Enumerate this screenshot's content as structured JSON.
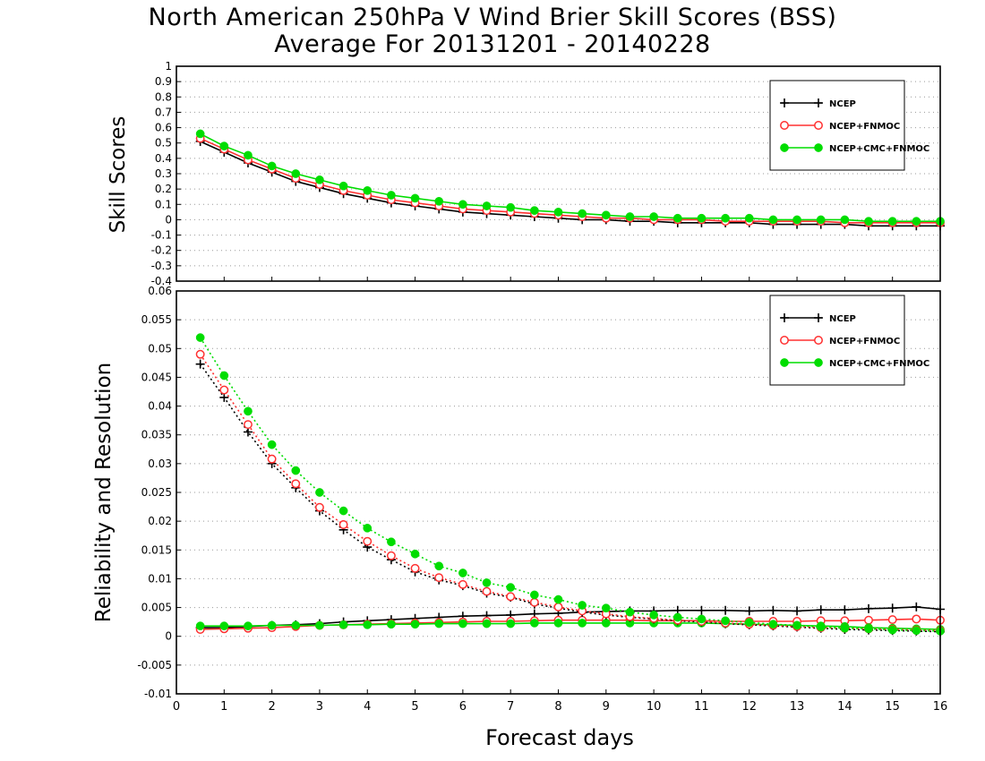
{
  "title_line1": "North American 250hPa V Wind Brier Skill Scores (BSS)",
  "title_line2": "Average For 20131201 - 20140228",
  "xlabel": "Forecast days",
  "colors": {
    "ncep": "#000000",
    "fnmoc": "#ff3030",
    "cmc": "#00dd00",
    "grid": "#999999"
  },
  "chart_data": [
    {
      "type": "line",
      "ylabel": "Skill Scores",
      "xlim": [
        0,
        16
      ],
      "ylim": [
        -0.4,
        1
      ],
      "x_ticks": [
        0,
        1,
        2,
        3,
        4,
        5,
        6,
        7,
        8,
        9,
        10,
        11,
        12,
        13,
        14,
        15,
        16
      ],
      "y_ticks": [
        "-0.4",
        "-0.3",
        "-0.2",
        "-0.1",
        "0",
        "0.1",
        "0.2",
        "0.3",
        "0.4",
        "0.5",
        "0.6",
        "0.7",
        "0.8",
        "0.9",
        "1"
      ],
      "grid": "horizontal dotted",
      "legend": "top-right",
      "x": [
        0.5,
        1,
        1.5,
        2,
        2.5,
        3,
        3.5,
        4,
        4.5,
        5,
        5.5,
        6,
        6.5,
        7,
        7.5,
        8,
        8.5,
        9,
        9.5,
        10,
        10.5,
        11,
        11.5,
        12,
        12.5,
        13,
        13.5,
        14,
        14.5,
        15,
        15.5,
        16
      ],
      "series": [
        {
          "name": "NCEP",
          "color": "#000000",
          "marker": "plus",
          "line": "solid",
          "values": [
            0.51,
            0.44,
            0.37,
            0.31,
            0.25,
            0.21,
            0.17,
            0.14,
            0.11,
            0.09,
            0.07,
            0.05,
            0.04,
            0.03,
            0.02,
            0.01,
            0.0,
            0.0,
            -0.01,
            -0.01,
            -0.02,
            -0.02,
            -0.02,
            -0.02,
            -0.03,
            -0.03,
            -0.03,
            -0.03,
            -0.04,
            -0.04,
            -0.04,
            -0.04
          ]
        },
        {
          "name": "NCEP+FNMOC",
          "color": "#ff3030",
          "marker": "open-circle",
          "line": "solid",
          "values": [
            0.53,
            0.46,
            0.39,
            0.33,
            0.27,
            0.23,
            0.19,
            0.16,
            0.13,
            0.11,
            0.09,
            0.07,
            0.06,
            0.05,
            0.04,
            0.03,
            0.02,
            0.01,
            0.01,
            0.0,
            0.0,
            0.0,
            -0.01,
            -0.01,
            -0.01,
            -0.01,
            -0.01,
            -0.02,
            -0.02,
            -0.02,
            -0.02,
            -0.02
          ]
        },
        {
          "name": "NCEP+CMC+FNMOC",
          "color": "#00dd00",
          "marker": "filled-circle",
          "line": "solid",
          "values": [
            0.56,
            0.48,
            0.42,
            0.35,
            0.3,
            0.26,
            0.22,
            0.19,
            0.16,
            0.14,
            0.12,
            0.1,
            0.09,
            0.08,
            0.06,
            0.05,
            0.04,
            0.03,
            0.02,
            0.02,
            0.01,
            0.01,
            0.01,
            0.01,
            0.0,
            0.0,
            0.0,
            0.0,
            -0.01,
            -0.01,
            -0.01,
            -0.01
          ]
        }
      ]
    },
    {
      "type": "line",
      "ylabel": "Reliability and Resolution",
      "xlim": [
        0,
        16
      ],
      "ylim": [
        -0.01,
        0.06
      ],
      "x_ticks": [
        0,
        1,
        2,
        3,
        4,
        5,
        6,
        7,
        8,
        9,
        10,
        11,
        12,
        13,
        14,
        15,
        16
      ],
      "y_ticks": [
        "-0.01",
        "-0.005",
        "0",
        "0.005",
        "0.01",
        "0.015",
        "0.02",
        "0.025",
        "0.03",
        "0.035",
        "0.04",
        "0.045",
        "0.05",
        "0.055",
        "0.06"
      ],
      "grid": "horizontal dotted",
      "legend": "top-right",
      "x": [
        0.5,
        1,
        1.5,
        2,
        2.5,
        3,
        3.5,
        4,
        4.5,
        5,
        5.5,
        6,
        6.5,
        7,
        7.5,
        8,
        8.5,
        9,
        9.5,
        10,
        10.5,
        11,
        11.5,
        12,
        12.5,
        13,
        13.5,
        14,
        14.5,
        15,
        15.5,
        16
      ],
      "series": [
        {
          "name": "NCEP",
          "color": "#000000",
          "marker": "plus",
          "line": "solid",
          "values": [
            0.0015,
            0.0015,
            0.0017,
            0.0019,
            0.002,
            0.0022,
            0.0025,
            0.0027,
            0.0029,
            0.0031,
            0.0033,
            0.0035,
            0.0036,
            0.0037,
            0.0039,
            0.004,
            0.0042,
            0.0043,
            0.0044,
            0.0044,
            0.0045,
            0.0045,
            0.0045,
            0.0044,
            0.0045,
            0.0044,
            0.0046,
            0.0046,
            0.0048,
            0.0049,
            0.0051,
            0.0047
          ]
        },
        {
          "name": "NCEP+FNMOC",
          "color": "#ff3030",
          "marker": "open-circle",
          "line": "solid",
          "values": [
            0.0012,
            0.0013,
            0.0014,
            0.0015,
            0.0017,
            0.0019,
            0.002,
            0.0021,
            0.0022,
            0.0023,
            0.0024,
            0.0025,
            0.0026,
            0.0026,
            0.0027,
            0.0028,
            0.0028,
            0.0028,
            0.0028,
            0.0027,
            0.0027,
            0.0027,
            0.0026,
            0.0026,
            0.0026,
            0.0026,
            0.0027,
            0.0027,
            0.0028,
            0.0029,
            0.003,
            0.0028
          ]
        },
        {
          "name": "NCEP+CMC+FNMOC",
          "color": "#00dd00",
          "marker": "filled-circle",
          "line": "solid",
          "values": [
            0.0018,
            0.0018,
            0.0018,
            0.0019,
            0.0019,
            0.0019,
            0.002,
            0.002,
            0.0021,
            0.0021,
            0.0022,
            0.0022,
            0.0022,
            0.0022,
            0.0023,
            0.0023,
            0.0023,
            0.0023,
            0.0023,
            0.0023,
            0.0023,
            0.0023,
            0.0022,
            0.0021,
            0.002,
            0.0019,
            0.0018,
            0.0017,
            0.0015,
            0.0014,
            0.0013,
            0.0012
          ]
        },
        {
          "name": "",
          "color": "#000000",
          "marker": "plus",
          "line": "dotted",
          "values": [
            0.0473,
            0.0415,
            0.0355,
            0.03,
            0.0258,
            0.0218,
            0.0185,
            0.0155,
            0.0133,
            0.0112,
            0.0098,
            0.0088,
            0.0075,
            0.0068,
            0.0056,
            0.0049,
            0.0042,
            0.0037,
            0.0033,
            0.003,
            0.0027,
            0.0025,
            0.0022,
            0.002,
            0.0018,
            0.0016,
            0.0014,
            0.0012,
            0.0011,
            0.001,
            0.0009,
            0.0008
          ]
        },
        {
          "name": "",
          "color": "#ff3030",
          "marker": "open-circle",
          "line": "dotted",
          "values": [
            0.049,
            0.0428,
            0.0368,
            0.0308,
            0.0265,
            0.0224,
            0.0194,
            0.0165,
            0.014,
            0.0118,
            0.0102,
            0.009,
            0.0078,
            0.0069,
            0.0059,
            0.0051,
            0.0044,
            0.0039,
            0.0034,
            0.0031,
            0.0028,
            0.0026,
            0.0023,
            0.0021,
            0.0019,
            0.0017,
            0.0015,
            0.0014,
            0.0013,
            0.0012,
            0.0011,
            0.001
          ]
        },
        {
          "name": "",
          "color": "#00dd00",
          "marker": "filled-circle",
          "line": "dotted",
          "values": [
            0.0519,
            0.0453,
            0.0391,
            0.0333,
            0.0288,
            0.025,
            0.0218,
            0.0188,
            0.0164,
            0.0143,
            0.0122,
            0.011,
            0.0093,
            0.0085,
            0.0072,
            0.0064,
            0.0054,
            0.0049,
            0.0042,
            0.0037,
            0.0033,
            0.003,
            0.0027,
            0.0024,
            0.0021,
            0.0019,
            0.0016,
            0.0014,
            0.0013,
            0.0011,
            0.001,
            0.0009
          ]
        }
      ]
    }
  ]
}
